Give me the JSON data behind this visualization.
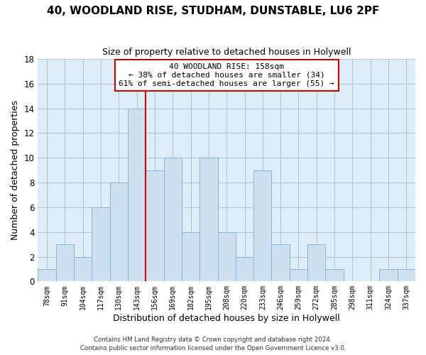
{
  "title": "40, WOODLAND RISE, STUDHAM, DUNSTABLE, LU6 2PF",
  "subtitle": "Size of property relative to detached houses in Holywell",
  "xlabel": "Distribution of detached houses by size in Holywell",
  "ylabel": "Number of detached properties",
  "bin_labels": [
    "78sqm",
    "91sqm",
    "104sqm",
    "117sqm",
    "130sqm",
    "143sqm",
    "156sqm",
    "169sqm",
    "182sqm",
    "195sqm",
    "208sqm",
    "220sqm",
    "233sqm",
    "246sqm",
    "259sqm",
    "272sqm",
    "285sqm",
    "298sqm",
    "311sqm",
    "324sqm",
    "337sqm"
  ],
  "bar_heights": [
    1,
    3,
    2,
    6,
    8,
    14,
    9,
    10,
    4,
    10,
    4,
    2,
    9,
    3,
    1,
    3,
    1,
    0,
    0,
    1,
    1
  ],
  "bar_color": "#cce0f0",
  "bar_edge_color": "#8ab4d4",
  "reference_line_index": 5,
  "reference_line_color": "#cc0000",
  "annotation_box_text": "40 WOODLAND RISE: 158sqm\n← 38% of detached houses are smaller (34)\n61% of semi-detached houses are larger (55) →",
  "annotation_box_color": "#ffffff",
  "annotation_box_edge_color": "#cc0000",
  "ylim": [
    0,
    18
  ],
  "yticks": [
    0,
    2,
    4,
    6,
    8,
    10,
    12,
    14,
    16,
    18
  ],
  "plot_bg_color": "#ddeef8",
  "background_color": "#ffffff",
  "grid_color": "#b0c8dc",
  "footer_line1": "Contains HM Land Registry data © Crown copyright and database right 2024.",
  "footer_line2": "Contains public sector information licensed under the Open Government Licence v3.0."
}
